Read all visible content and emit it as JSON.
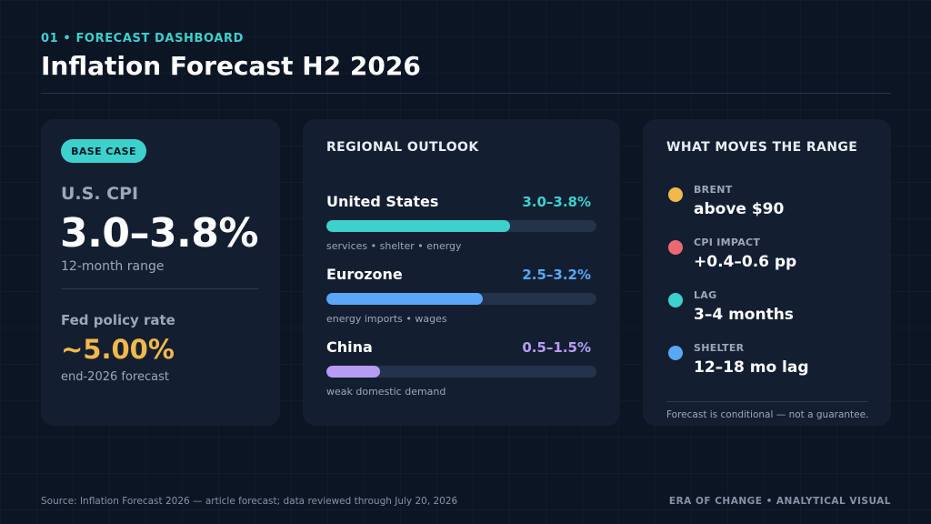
{
  "header": {
    "eyebrow": "01  •  FORECAST DASHBOARD",
    "title": "Inflation Forecast H2 2026"
  },
  "base_case": {
    "badge": "BASE CASE",
    "cpi_label": "U.S. CPI",
    "cpi_value": "3.0–3.8%",
    "cpi_sub": "12-month range",
    "fed_label": "Fed policy rate",
    "fed_value": "~5.00%",
    "fed_sub": "end-2026 forecast"
  },
  "regional": {
    "heading": "REGIONAL OUTLOOK",
    "regions": [
      {
        "name": "United States",
        "range": "3.0–3.8%",
        "note": "services • shelter • energy",
        "color": "#3dd1cc",
        "fill_fraction": 0.68
      },
      {
        "name": "Eurozone",
        "range": "2.5–3.2%",
        "note": "energy imports • wages",
        "color": "#5aa7f5",
        "fill_fraction": 0.58
      },
      {
        "name": "China",
        "range": "0.5–1.5%",
        "note": "weak domestic demand",
        "color": "#b79cf4",
        "fill_fraction": 0.2
      }
    ]
  },
  "moves": {
    "heading": "WHAT MOVES THE RANGE",
    "drivers": [
      {
        "label": "BRENT",
        "value": "above $90",
        "color": "#f2b84b"
      },
      {
        "label": "CPI IMPACT",
        "value": "+0.4–0.6 pp",
        "color": "#ea6a74"
      },
      {
        "label": "LAG",
        "value": "3–4 months",
        "color": "#3dd1cc"
      },
      {
        "label": "SHELTER",
        "value": "12–18 mo lag",
        "color": "#5aa7f5"
      }
    ],
    "footnote": "Forecast is conditional — not a guarantee."
  },
  "footer": {
    "source": "Source: Inflation Forecast 2026 — article forecast; data reviewed through July 20, 2026",
    "brand": "ERA OF CHANGE  •  ANALYTICAL VISUAL"
  }
}
